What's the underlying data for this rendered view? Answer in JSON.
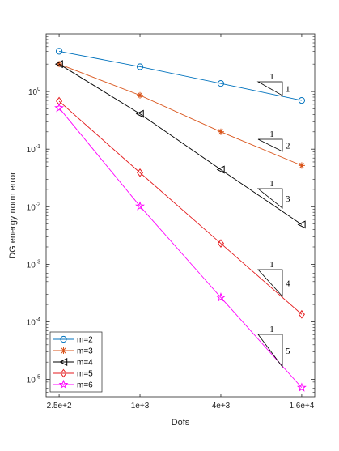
{
  "chart_data": {
    "type": "line",
    "title": "",
    "xlabel": "Dofs",
    "ylabel": "DG energy norm error",
    "x_scale": "log",
    "y_scale": "log",
    "xlim": [
      200,
      20000
    ],
    "ylim": [
      5e-06,
      10
    ],
    "x_ticks": [
      {
        "value": 250,
        "label": "2.5e+2"
      },
      {
        "value": 1000,
        "label": "1e+3"
      },
      {
        "value": 4000,
        "label": "4e+3"
      },
      {
        "value": 16000,
        "label": "1.6e+4"
      }
    ],
    "y_ticks": [
      {
        "value": 1e-05,
        "base": "10",
        "exp": "-5"
      },
      {
        "value": 0.0001,
        "base": "10",
        "exp": "-4"
      },
      {
        "value": 0.001,
        "base": "10",
        "exp": "-3"
      },
      {
        "value": 0.01,
        "base": "10",
        "exp": "-2"
      },
      {
        "value": 0.1,
        "base": "10",
        "exp": "-1"
      },
      {
        "value": 1,
        "base": "10",
        "exp": "0"
      }
    ],
    "x": [
      250,
      1000,
      4000,
      16000
    ],
    "series": [
      {
        "name": "m=2",
        "color": "#0072BD",
        "marker": "circle",
        "values": [
          5.0,
          2.7,
          1.38,
          0.7
        ]
      },
      {
        "name": "m=3",
        "color": "#D95319",
        "marker": "asterisk",
        "values": [
          3.0,
          0.86,
          0.2,
          0.052
        ]
      },
      {
        "name": "m=4",
        "color": "#000000",
        "marker": "triangle-left",
        "values": [
          3.0,
          0.41,
          0.044,
          0.0049
        ]
      },
      {
        "name": "m=5",
        "color": "#E41A1C",
        "marker": "diamond",
        "values": [
          0.68,
          0.039,
          0.0023,
          0.000135
        ]
      },
      {
        "name": "m=6",
        "color": "#FF00FF",
        "marker": "pentagram",
        "values": [
          0.52,
          0.0102,
          0.000265,
          7.2e-06
        ]
      }
    ],
    "slope_triangles": [
      {
        "run": "1",
        "rise": "1"
      },
      {
        "run": "1",
        "rise": "2"
      },
      {
        "run": "1",
        "rise": "3"
      },
      {
        "run": "1",
        "rise": "4"
      },
      {
        "run": "1",
        "rise": "5"
      }
    ],
    "legend_position": "bottom-left",
    "grid": false
  }
}
